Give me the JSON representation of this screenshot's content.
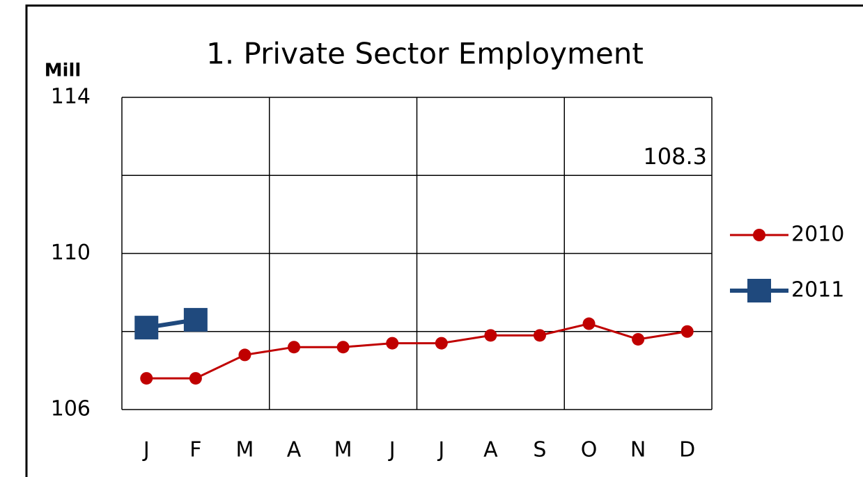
{
  "chart_data": {
    "type": "line",
    "title": "1. Private Sector Employment",
    "y_label": "Mill",
    "categories": [
      "J",
      "F",
      "M",
      "A",
      "M",
      "J",
      "J",
      "A",
      "S",
      "O",
      "N",
      "D"
    ],
    "series": [
      {
        "name": "2010",
        "color": "#c00000",
        "marker": "circle",
        "values": [
          106.8,
          106.8,
          107.4,
          107.6,
          107.6,
          107.7,
          107.7,
          107.9,
          107.9,
          108.2,
          107.8,
          108.0
        ]
      },
      {
        "name": "2011",
        "color": "#1f497d",
        "marker": "square",
        "values": [
          108.1,
          108.3,
          null,
          null,
          null,
          null,
          null,
          null,
          null,
          null,
          null,
          null
        ]
      }
    ],
    "annotation": "108.3",
    "ylim": [
      106,
      114
    ],
    "yticks": [
      106,
      110,
      114
    ],
    "grid_yticks": [
      106,
      108,
      110,
      112,
      114
    ],
    "grid": true,
    "legend": "right"
  }
}
